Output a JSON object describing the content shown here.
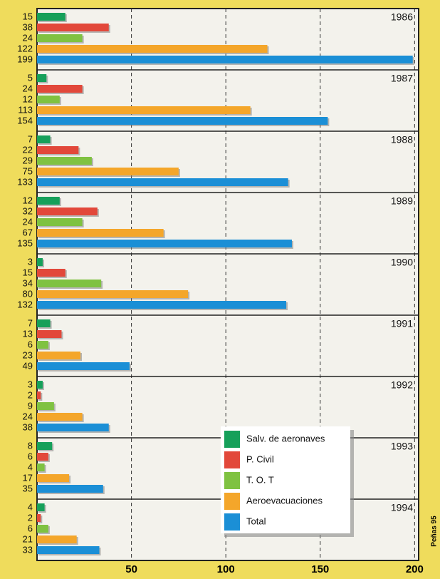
{
  "chart_data": {
    "type": "bar",
    "orientation": "horizontal",
    "categories": [
      "1986",
      "1987",
      "1988",
      "1989",
      "1990",
      "1991",
      "1992",
      "1993",
      "1994"
    ],
    "series": [
      {
        "name": "Salv. de aeronaves",
        "color": "#16a05a",
        "values": [
          15,
          5,
          7,
          12,
          3,
          7,
          3,
          8,
          4
        ]
      },
      {
        "name": "P. Civil",
        "color": "#e2483a",
        "values": [
          38,
          24,
          22,
          32,
          15,
          13,
          2,
          6,
          2
        ]
      },
      {
        "name": "T. O. T",
        "color": "#7fc241",
        "values": [
          24,
          12,
          29,
          24,
          34,
          6,
          9,
          4,
          6
        ]
      },
      {
        "name": "Aeroevacuaciones",
        "color": "#f4a62a",
        "values": [
          122,
          113,
          75,
          67,
          80,
          23,
          24,
          17,
          21
        ]
      },
      {
        "name": "Total",
        "color": "#1b8fd6",
        "values": [
          199,
          154,
          133,
          135,
          132,
          49,
          38,
          35,
          33
        ]
      }
    ],
    "xlim": [
      0,
      201
    ],
    "xticks": [
      50,
      100,
      150,
      200
    ],
    "grid": true,
    "legend": "lower right",
    "credit": "Peñas 95"
  }
}
